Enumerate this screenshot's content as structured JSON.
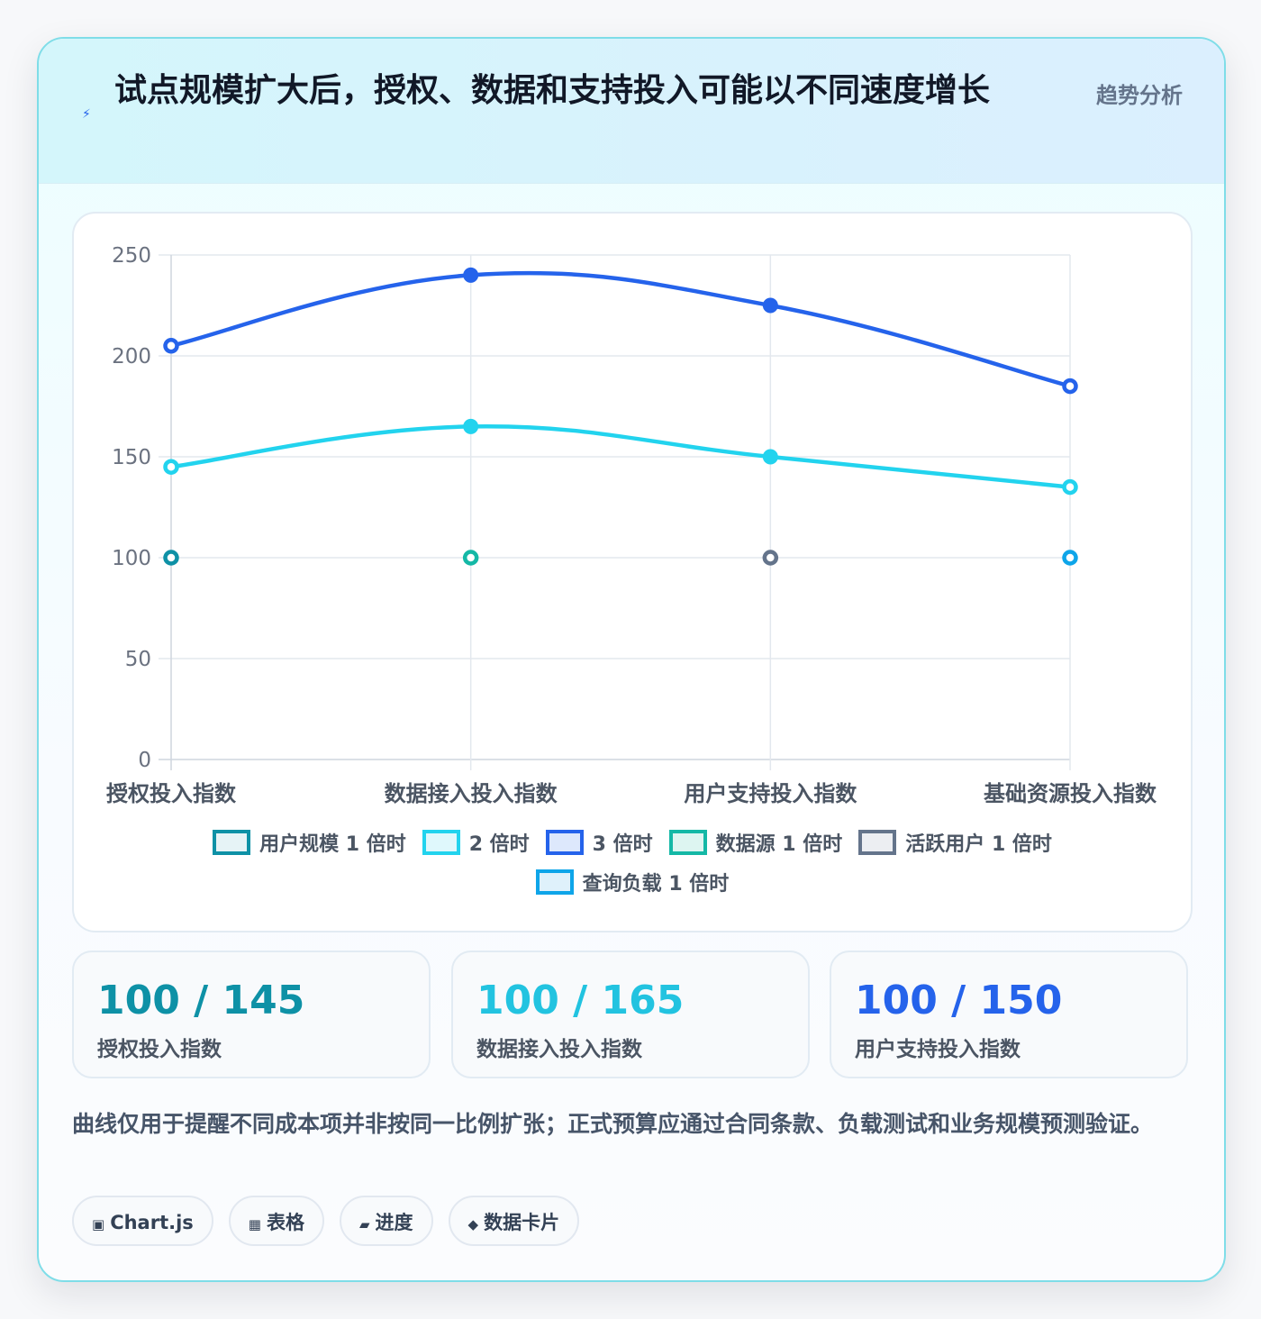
{
  "header": {
    "title": "试点规模扩大后，授权、数据和支持投入可能以不同速度增长",
    "tag": "趋势分析",
    "icon": "lightning-icon",
    "accent": "#2563eb"
  },
  "chart_data": {
    "type": "line",
    "categories": [
      "授权投入指数",
      "数据接入投入指数",
      "用户支持投入指数",
      "基础资源投入指数"
    ],
    "ylim": [
      0,
      250
    ],
    "yticks": [
      0,
      50,
      100,
      150,
      200,
      250
    ],
    "grid": true,
    "legend_position": "bottom",
    "series": [
      {
        "name": "用户规模 1 倍时",
        "values": [
          100,
          null,
          null,
          null
        ],
        "color": "#0e91a6",
        "fill": "#e6f3f6",
        "line": false
      },
      {
        "name": "2 倍时",
        "values": [
          145,
          165,
          150,
          135
        ],
        "color": "#22d3ee",
        "fill": "#dff8fc",
        "line": true
      },
      {
        "name": "3 倍时",
        "values": [
          205,
          240,
          225,
          185
        ],
        "color": "#2563eb",
        "fill": "#dde8fc",
        "line": true
      },
      {
        "name": "数据源 1 倍时",
        "values": [
          null,
          100,
          null,
          null
        ],
        "color": "#14b8a6",
        "fill": "#ddf5f1",
        "line": false
      },
      {
        "name": "活跃用户 1 倍时",
        "values": [
          null,
          null,
          100,
          null
        ],
        "color": "#64748b",
        "fill": "#eceef2",
        "line": false
      },
      {
        "name": "查询负载 1 倍时",
        "values": [
          null,
          null,
          null,
          100
        ],
        "color": "#0ea5e9",
        "fill": "#dff1fb",
        "line": false
      }
    ]
  },
  "kpis": [
    {
      "value": "100 / 145",
      "label": "授权投入指数",
      "color": "#0e91a6"
    },
    {
      "value": "100 / 165",
      "label": "数据接入投入指数",
      "color": "#22c3e0"
    },
    {
      "value": "100 / 150",
      "label": "用户支持投入指数",
      "color": "#2563eb"
    }
  ],
  "note": "曲线仅用于提醒不同成本项并非按同一比例扩张；正式预算应通过合同条款、负载测试和业务规模预测验证。",
  "pills": [
    {
      "icon": "▣",
      "label": "Chart.js"
    },
    {
      "icon": "▦",
      "label": "表格"
    },
    {
      "icon": "▰",
      "label": "进度"
    },
    {
      "icon": "◆",
      "label": "数据卡片"
    }
  ]
}
